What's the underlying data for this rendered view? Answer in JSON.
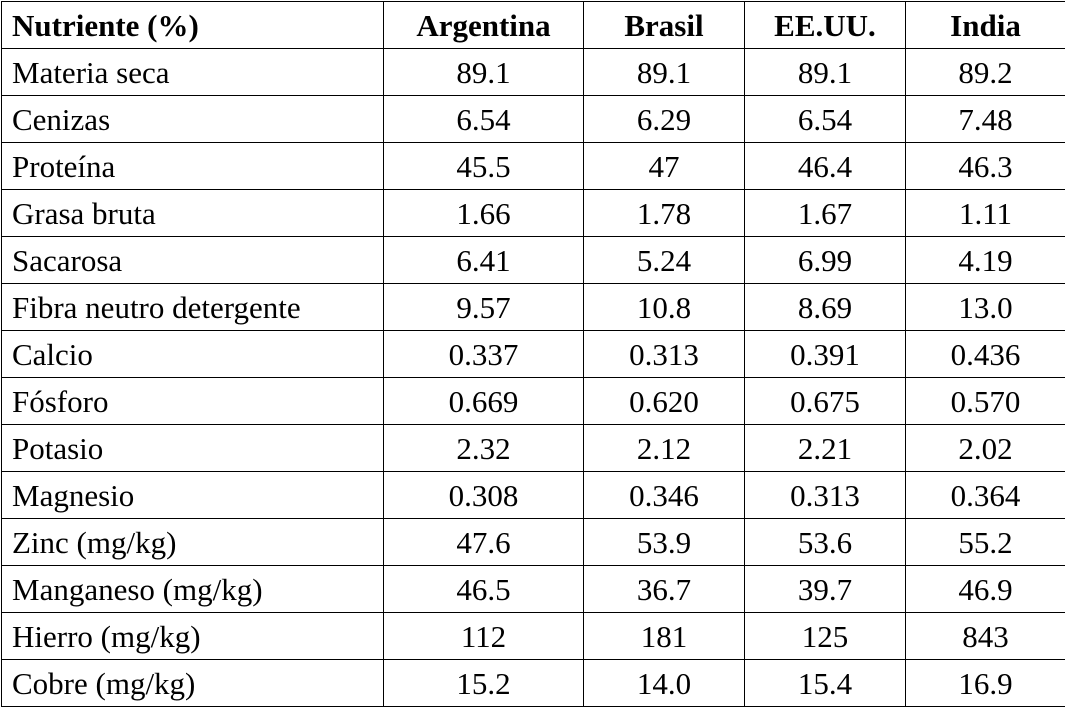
{
  "table": {
    "headers": [
      "Nutriente (%)",
      "Argentina",
      "Brasil",
      "EE.UU.",
      "India"
    ],
    "rows": [
      [
        "Materia seca",
        "89.1",
        "89.1",
        "89.1",
        "89.2"
      ],
      [
        "Cenizas",
        "6.54",
        "6.29",
        "6.54",
        "7.48"
      ],
      [
        "Proteína",
        "45.5",
        "47",
        "46.4",
        "46.3"
      ],
      [
        "Grasa bruta",
        "1.66",
        "1.78",
        "1.67",
        "1.11"
      ],
      [
        "Sacarosa",
        "6.41",
        "5.24",
        "6.99",
        "4.19"
      ],
      [
        "Fibra neutro detergente",
        "9.57",
        "10.8",
        "8.69",
        "13.0"
      ],
      [
        "Calcio",
        "0.337",
        "0.313",
        "0.391",
        "0.436"
      ],
      [
        "Fósforo",
        "0.669",
        "0.620",
        "0.675",
        "0.570"
      ],
      [
        "Potasio",
        "2.32",
        "2.12",
        "2.21",
        "2.02"
      ],
      [
        "Magnesio",
        "0.308",
        "0.346",
        "0.313",
        "0.364"
      ],
      [
        "Zinc (mg/kg)",
        "47.6",
        "53.9",
        "53.6",
        "55.2"
      ],
      [
        "Manganeso (mg/kg)",
        "46.5",
        "36.7",
        "39.7",
        "46.9"
      ],
      [
        "Hierro (mg/kg)",
        "112",
        "181",
        "125",
        "843"
      ],
      [
        "Cobre (mg/kg)",
        "15.2",
        "14.0",
        "15.4",
        "16.9"
      ]
    ]
  }
}
